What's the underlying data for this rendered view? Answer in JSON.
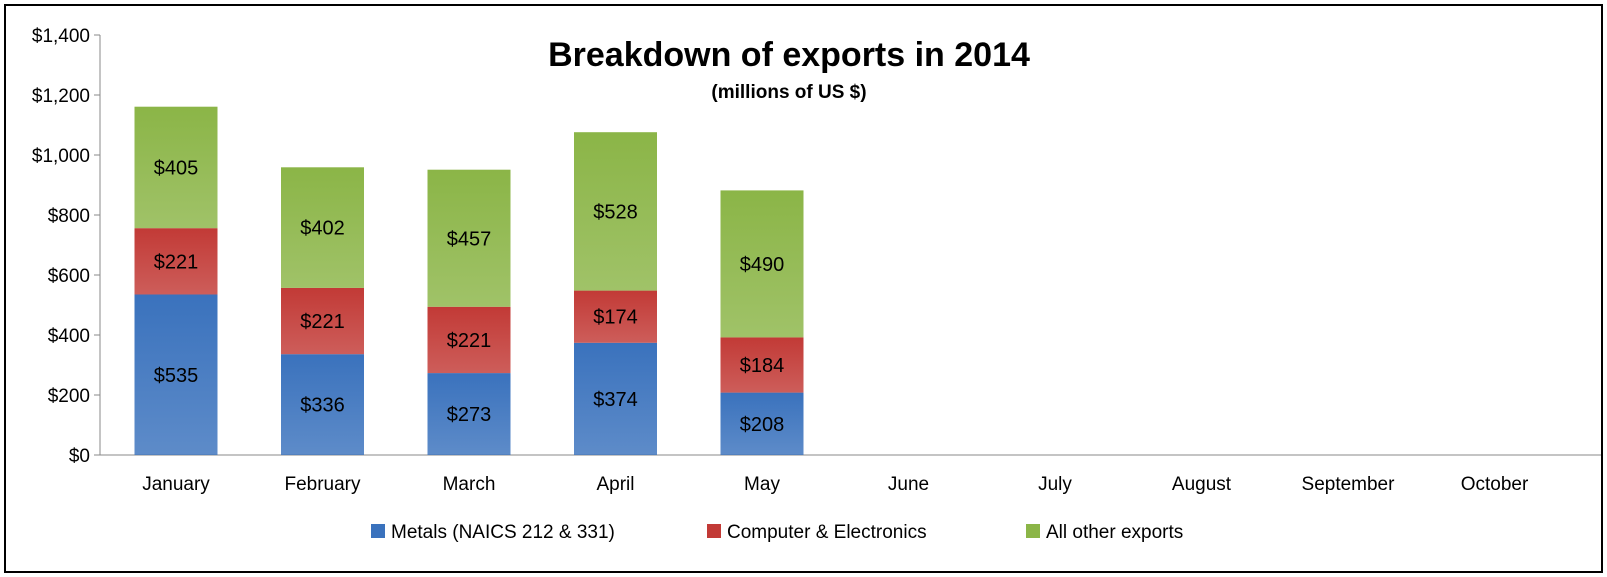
{
  "chart_data": {
    "type": "bar",
    "stacked": true,
    "title": "Breakdown of exports in 2014",
    "subtitle": "(millions of US $)",
    "xlabel": "",
    "ylabel": "",
    "categories": [
      "January",
      "February",
      "March",
      "April",
      "May",
      "June",
      "July",
      "August",
      "September",
      "October"
    ],
    "series": [
      {
        "name": "Metals (NAICS 212 & 331)",
        "values": [
          535,
          336,
          273,
          374,
          208,
          null,
          null,
          null,
          null,
          null
        ],
        "labels": [
          "$535",
          "$336",
          "$273",
          "$374",
          "$208"
        ]
      },
      {
        "name": "Computer & Electronics",
        "values": [
          221,
          221,
          221,
          174,
          184,
          null,
          null,
          null,
          null,
          null
        ],
        "labels": [
          "$221",
          "$221",
          "$221",
          "$174",
          "$184"
        ]
      },
      {
        "name": "All other exports",
        "values": [
          405,
          402,
          457,
          528,
          490,
          null,
          null,
          null,
          null,
          null
        ],
        "labels": [
          "$405",
          "$402",
          "$457",
          "$528",
          "$490"
        ]
      }
    ],
    "ylim": [
      0,
      1400
    ],
    "yticks": [
      0,
      200,
      400,
      600,
      800,
      1000,
      1200,
      1400
    ],
    "ytick_labels": [
      "$0",
      "$200",
      "$400",
      "$600",
      "$800",
      "$1,000",
      "$1,200",
      "$1,400"
    ],
    "grid": false,
    "legend_position": "bottom",
    "colors": {
      "Metals (NAICS 212 & 331)": "#3a72bd",
      "Computer & Electronics": "#c23a36",
      "All other exports": "#8bb547"
    }
  }
}
